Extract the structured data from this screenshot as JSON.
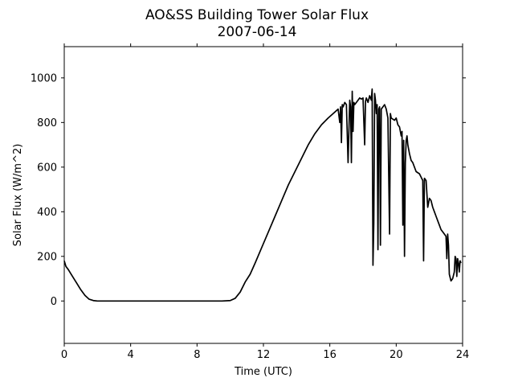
{
  "chart_data": {
    "type": "line",
    "title": "AO&SS Building Tower Solar Flux",
    "subtitle": "2007-06-14",
    "xlabel": "Time (UTC)",
    "ylabel": "Solar Flux (W/m^2)",
    "xlim": [
      0,
      24
    ],
    "ylim": [
      -190,
      1140
    ],
    "xticks": [
      0,
      4,
      8,
      12,
      16,
      20,
      24
    ],
    "yticks": [
      0,
      200,
      400,
      600,
      800,
      1000
    ],
    "grid": false,
    "line_color": "#000000",
    "series": [
      {
        "x": [
          0,
          0.1,
          0.25,
          0.5,
          0.75,
          1.0,
          1.25,
          1.5,
          1.75,
          2.0,
          2.5,
          3,
          4,
          5,
          6,
          7,
          8,
          9,
          9.5,
          10.0,
          10.3,
          10.6,
          10.9,
          11.2,
          11.5,
          11.9,
          12.3,
          12.7,
          13.1,
          13.5,
          13.9,
          14.3,
          14.7,
          15.1,
          15.5,
          15.9,
          16.2,
          16.5,
          16.6,
          16.65,
          16.7,
          16.75,
          16.8,
          16.9,
          17.0,
          17.1,
          17.2,
          17.25,
          17.3,
          17.35,
          17.4,
          17.45,
          17.5,
          17.6,
          17.7,
          17.8,
          17.9,
          18.0,
          18.1,
          18.15,
          18.2,
          18.3,
          18.4,
          18.5,
          18.55,
          18.6,
          18.65,
          18.7,
          18.75,
          18.8,
          18.85,
          18.9,
          18.95,
          19.0,
          19.05,
          19.1,
          19.2,
          19.3,
          19.4,
          19.5,
          19.6,
          19.65,
          19.7,
          19.8,
          19.9,
          20.0,
          20.1,
          20.2,
          20.3,
          20.35,
          20.4,
          20.45,
          20.5,
          20.55,
          20.6,
          20.65,
          20.7,
          20.8,
          20.9,
          21.0,
          21.2,
          21.4,
          21.6,
          21.65,
          21.7,
          21.8,
          21.9,
          22.0,
          22.1,
          22.2,
          22.3,
          22.4,
          22.5,
          22.6,
          22.7,
          22.8,
          22.9,
          23.0,
          23.05,
          23.1,
          23.15,
          23.2,
          23.3,
          23.4,
          23.5,
          23.55,
          23.6,
          23.65,
          23.7,
          23.75,
          23.8,
          23.85,
          23.9
        ],
        "y": [
          180,
          155,
          140,
          110,
          80,
          50,
          25,
          8,
          2,
          0,
          0,
          0,
          0,
          0,
          0,
          0,
          0,
          0,
          0,
          2,
          12,
          40,
          85,
          120,
          170,
          240,
          310,
          380,
          450,
          520,
          580,
          640,
          700,
          750,
          790,
          820,
          840,
          860,
          800,
          870,
          710,
          880,
          870,
          890,
          880,
          620,
          900,
          870,
          620,
          940,
          760,
          890,
          880,
          890,
          900,
          910,
          905,
          910,
          700,
          895,
          910,
          890,
          920,
          900,
          950,
          160,
          350,
          930,
          900,
          840,
          880,
          230,
          860,
          870,
          250,
          860,
          870,
          880,
          860,
          820,
          300,
          840,
          820,
          815,
          810,
          820,
          790,
          780,
          740,
          760,
          340,
          720,
          200,
          620,
          720,
          740,
          700,
          660,
          630,
          620,
          580,
          570,
          540,
          180,
          550,
          540,
          420,
          460,
          450,
          420,
          400,
          380,
          360,
          340,
          320,
          310,
          300,
          290,
          190,
          300,
          250,
          120,
          90,
          100,
          130,
          200,
          190,
          110,
          190,
          170,
          130,
          180,
          170
        ]
      }
    ]
  }
}
